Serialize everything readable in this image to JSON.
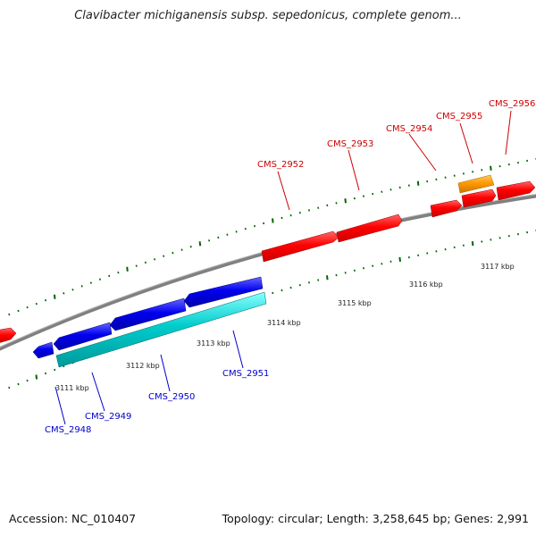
{
  "title": "Clavibacter michiganensis subsp. sepedonicus, complete genom...",
  "footer": {
    "accession": "Accession: NC_010407",
    "summary": "Topology: circular; Length: 3,258,645 bp; Genes: 2,991"
  },
  "colors": {
    "backbone": "#808080",
    "forward_gene": "#ff0000",
    "forward_label": "#cc0000",
    "reverse_gene": "#0000ee",
    "reverse_label": "#0000cc",
    "rna_gene": "#00cccc",
    "highlight_gene": "#ff9900",
    "ticks": "#006600"
  },
  "scale_labels": [
    "3111 kbp",
    "3112 kbp",
    "3113 kbp",
    "3114 kbp",
    "3115 kbp",
    "3116 kbp",
    "3117 kbp"
  ],
  "gene_labels": {
    "forward": [
      "CMS_2952",
      "CMS_2953",
      "CMS_2954",
      "CMS_2955",
      "CMS_2956"
    ],
    "reverse": [
      "CMS_2948",
      "CMS_2949",
      "CMS_2950",
      "CMS_2951"
    ]
  }
}
